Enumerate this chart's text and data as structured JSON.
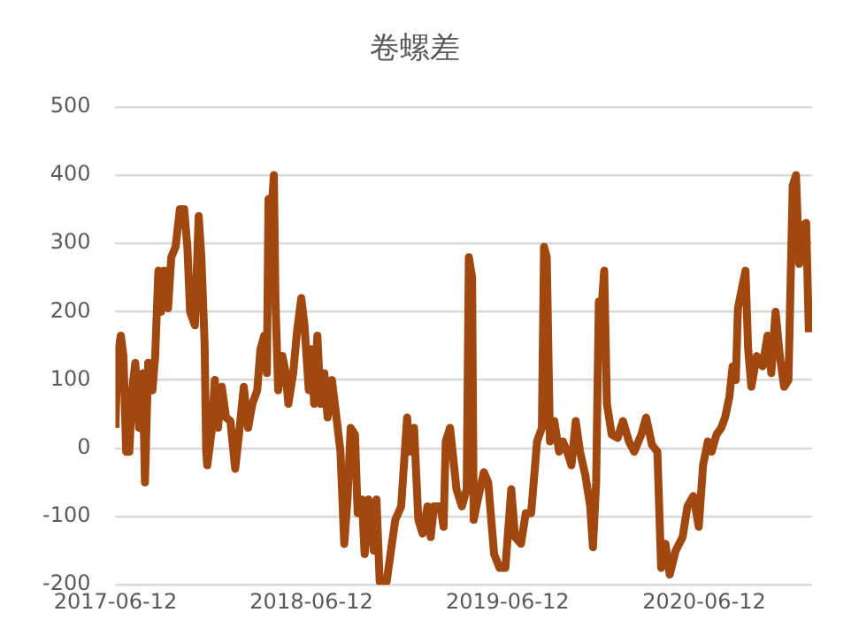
{
  "chart_data": {
    "type": "line",
    "title": "卷螺差",
    "color": "#a0480f",
    "marker": "none",
    "line_style": "solid",
    "grid": "y",
    "legend": false,
    "xlim": [
      "2017-06-12",
      "2020-12-30"
    ],
    "xticks": [
      "2017-06-12",
      "2018-06-12",
      "2019-06-12",
      "2020-06-12"
    ],
    "ylim": [
      -200,
      500
    ],
    "yticks": [
      -200,
      -100,
      0,
      100,
      200,
      300,
      400,
      500
    ],
    "x": [
      "2017-06-12",
      "2017-06-16",
      "2017-06-22",
      "2017-06-27",
      "2017-07-02",
      "2017-07-08",
      "2017-07-13",
      "2017-07-19",
      "2017-07-26",
      "2017-08-02",
      "2017-08-06",
      "2017-08-12",
      "2017-08-20",
      "2017-08-25",
      "2017-08-31",
      "2017-09-05",
      "2017-09-10",
      "2017-09-18",
      "2017-09-24",
      "2017-10-02",
      "2017-10-10",
      "2017-10-18",
      "2017-10-24",
      "2017-10-29",
      "2017-11-07",
      "2017-11-14",
      "2017-11-19",
      "2017-11-25",
      "2017-11-28",
      "2017-11-30",
      "2017-12-09",
      "2017-12-14",
      "2017-12-20",
      "2017-12-27",
      "2018-01-04",
      "2018-01-12",
      "2018-01-21",
      "2018-01-28",
      "2018-02-06",
      "2018-02-14",
      "2018-02-22",
      "2018-03-03",
      "2018-03-09",
      "2018-03-16",
      "2018-03-21",
      "2018-03-24",
      "2018-03-29",
      "2018-04-03",
      "2018-04-06",
      "2018-04-11",
      "2018-04-19",
      "2018-04-25",
      "2018-04-30",
      "2018-05-09",
      "2018-05-16",
      "2018-05-24",
      "2018-05-30",
      "2018-06-07",
      "2018-06-12",
      "2018-06-17",
      "2018-06-23",
      "2018-06-29",
      "2018-07-06",
      "2018-07-12",
      "2018-07-20",
      "2018-07-27",
      "2018-08-05",
      "2018-08-12",
      "2018-08-18",
      "2018-08-24",
      "2018-09-01",
      "2018-09-06",
      "2018-09-14",
      "2018-09-19",
      "2018-09-26",
      "2018-09-30",
      "2018-10-06",
      "2018-10-11",
      "2018-10-17",
      "2018-10-30",
      "2018-11-15",
      "2018-11-26",
      "2018-12-07",
      "2018-12-12",
      "2018-12-20",
      "2018-12-28",
      "2019-01-05",
      "2019-01-14",
      "2019-01-20",
      "2019-01-26",
      "2019-02-07",
      "2019-02-13",
      "2019-02-17",
      "2019-02-25",
      "2019-03-09",
      "2019-03-19",
      "2019-03-28",
      "2019-04-01",
      "2019-04-07",
      "2019-04-10",
      "2019-04-19",
      "2019-04-29",
      "2019-05-07",
      "2019-05-18",
      "2019-05-28",
      "2019-06-08",
      "2019-06-19",
      "2019-06-26",
      "2019-07-07",
      "2019-07-16",
      "2019-07-26",
      "2019-08-06",
      "2019-08-15",
      "2019-08-19",
      "2019-08-24",
      "2019-08-30",
      "2019-09-07",
      "2019-09-16",
      "2019-09-23",
      "2019-10-01",
      "2019-10-09",
      "2019-10-17",
      "2019-10-25",
      "2019-11-04",
      "2019-11-13",
      "2019-11-18",
      "2019-11-24",
      "2019-11-29",
      "2019-12-04",
      "2019-12-09",
      "2019-12-14",
      "2019-12-23",
      "2020-01-03",
      "2020-01-13",
      "2020-01-24",
      "2020-02-03",
      "2020-02-16",
      "2020-02-25",
      "2020-03-07",
      "2020-03-17",
      "2020-03-24",
      "2020-04-01",
      "2020-04-09",
      "2020-04-20",
      "2020-05-03",
      "2020-05-12",
      "2020-05-23",
      "2020-06-02",
      "2020-06-10",
      "2020-06-19",
      "2020-06-26",
      "2020-07-05",
      "2020-07-14",
      "2020-07-21",
      "2020-07-29",
      "2020-08-04",
      "2020-08-10",
      "2020-08-14",
      "2020-08-19",
      "2020-08-28",
      "2020-09-02",
      "2020-09-08",
      "2020-09-18",
      "2020-09-29",
      "2020-10-08",
      "2020-10-15",
      "2020-10-23",
      "2020-10-31",
      "2020-11-08",
      "2020-11-16",
      "2020-11-24",
      "2020-11-30",
      "2020-12-06",
      "2020-12-11",
      "2020-12-19",
      "2020-12-24"
    ],
    "values": [
      30,
      135,
      165,
      135,
      -5,
      -5,
      85,
      125,
      30,
      110,
      -50,
      125,
      85,
      135,
      260,
      200,
      260,
      205,
      280,
      295,
      350,
      350,
      295,
      200,
      180,
      340,
      280,
      155,
      -5,
      -25,
      30,
      100,
      30,
      90,
      45,
      40,
      -30,
      20,
      90,
      30,
      65,
      85,
      145,
      165,
      110,
      365,
      340,
      400,
      215,
      85,
      135,
      110,
      65,
      110,
      170,
      220,
      180,
      85,
      145,
      65,
      165,
      65,
      110,
      45,
      100,
      55,
      -5,
      -140,
      -75,
      30,
      20,
      -95,
      -75,
      -155,
      -75,
      -95,
      -150,
      -75,
      -195,
      -195,
      -105,
      -85,
      45,
      -5,
      30,
      -105,
      -125,
      -85,
      -130,
      -85,
      -85,
      -115,
      10,
      30,
      -60,
      -85,
      -60,
      280,
      250,
      -105,
      -70,
      -35,
      -50,
      -155,
      -175,
      -175,
      -60,
      -130,
      -140,
      -95,
      -95,
      10,
      30,
      295,
      280,
      10,
      40,
      -5,
      10,
      -5,
      -25,
      40,
      -5,
      -40,
      -85,
      -145,
      -50,
      215,
      205,
      260,
      65,
      20,
      15,
      40,
      10,
      -5,
      20,
      45,
      5,
      -5,
      -175,
      -140,
      -185,
      -150,
      -130,
      -85,
      -70,
      -115,
      -25,
      10,
      -5,
      20,
      30,
      45,
      75,
      120,
      100,
      205,
      225,
      260,
      145,
      90,
      135,
      120,
      165,
      110,
      200,
      135,
      90,
      100,
      385,
      400,
      270,
      325,
      330,
      170
    ]
  }
}
